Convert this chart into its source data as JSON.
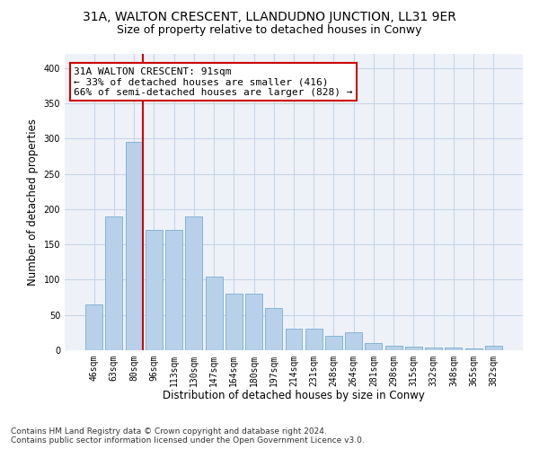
{
  "title": "31A, WALTON CRESCENT, LLANDUDNO JUNCTION, LL31 9ER",
  "subtitle": "Size of property relative to detached houses in Conwy",
  "xlabel": "Distribution of detached houses by size in Conwy",
  "ylabel": "Number of detached properties",
  "categories": [
    "46sqm",
    "63sqm",
    "80sqm",
    "96sqm",
    "113sqm",
    "130sqm",
    "147sqm",
    "164sqm",
    "180sqm",
    "197sqm",
    "214sqm",
    "231sqm",
    "248sqm",
    "264sqm",
    "281sqm",
    "298sqm",
    "315sqm",
    "332sqm",
    "348sqm",
    "365sqm",
    "382sqm"
  ],
  "values": [
    65,
    190,
    295,
    170,
    170,
    190,
    105,
    80,
    80,
    60,
    30,
    30,
    20,
    25,
    10,
    7,
    5,
    4,
    4,
    2,
    7
  ],
  "bar_color": "#b8d0ea",
  "bar_edge_color": "#7aadd4",
  "vline_color": "#cc0000",
  "annotation_text": "31A WALTON CRESCENT: 91sqm\n← 33% of detached houses are smaller (416)\n66% of semi-detached houses are larger (828) →",
  "annotation_box_facecolor": "#ffffff",
  "annotation_box_edgecolor": "#cc0000",
  "ylim": [
    0,
    420
  ],
  "yticks": [
    0,
    50,
    100,
    150,
    200,
    250,
    300,
    350,
    400
  ],
  "grid_color": "#c8d4e8",
  "background_color": "#eef2f8",
  "footer_text": "Contains HM Land Registry data © Crown copyright and database right 2024.\nContains public sector information licensed under the Open Government Licence v3.0.",
  "title_fontsize": 10,
  "subtitle_fontsize": 9,
  "axis_label_fontsize": 8.5,
  "tick_fontsize": 7,
  "annotation_fontsize": 8,
  "footer_fontsize": 6.5
}
